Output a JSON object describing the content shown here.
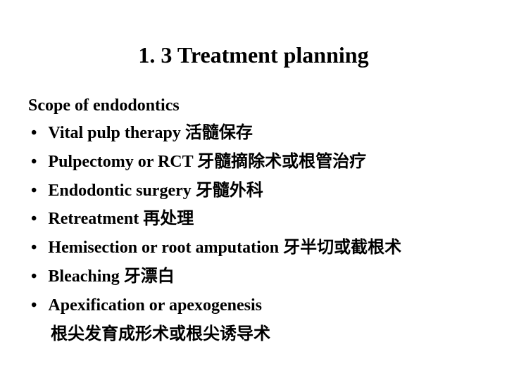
{
  "slide": {
    "title": "1. 3 Treatment planning",
    "subtitle": "Scope of endodontics",
    "bullets": [
      "Vital pulp therapy 活髓保存",
      "Pulpectomy or RCT 牙髓摘除术或根管治疗",
      "Endodontic surgery 牙髓外科",
      "Retreatment 再处理",
      "Hemisection or root amputation 牙半切或截根术",
      "Bleaching 牙漂白",
      "Apexification or apexogenesis"
    ],
    "continuation": "根尖发育成形术或根尖诱导术",
    "bullet_marker": "•"
  },
  "styling": {
    "title_fontsize": 32,
    "body_fontsize": 24,
    "title_color": "#000000",
    "body_color": "#000000",
    "background_color": "#ffffff",
    "line_height": 1.45
  }
}
